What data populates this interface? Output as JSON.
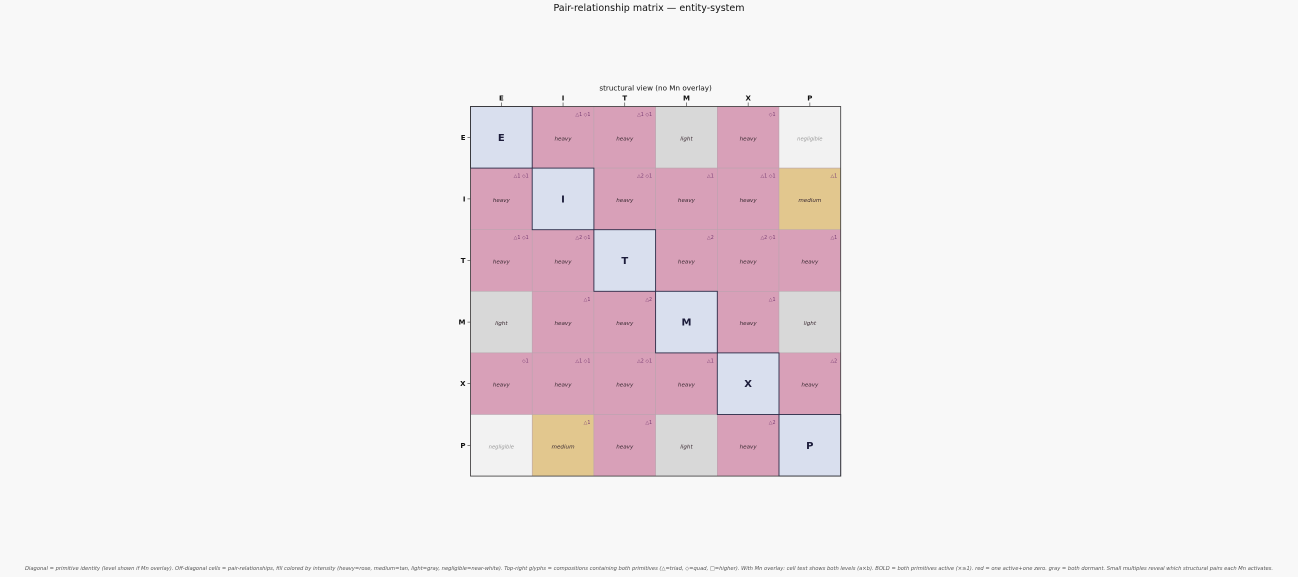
{
  "figure_title": "Pair-relationship matrix — entity-system",
  "footnote": "Diagonal = primitive identity (level shown if Mn overlay). Off-diagonal cells = pair-relationships, fill colored by intensity (heavy=rose, medium=tan, light=gray, negligible=near-white). Top-right glyphs = compositions containing both primitives (△=triad, ◇=quad, □=higher). With Mn overlay: cell text shows both levels (a×b). BOLD = both primitives active (×≥1). red = one active+one zero. gray = both dormant. Small multiples reveal which structural pairs each Mn activates.",
  "colors": {
    "heavy": "#d8a0b8",
    "medium": "#e2c78e",
    "light": "#d8d8d8",
    "negligible": "#f2f2f2",
    "diagonal": "#d9dfee",
    "grid": "#b8a3ad",
    "diagonal_border": "#2c2c48",
    "glyph": "#7a3d73"
  },
  "chart_data": {
    "type": "heatmap",
    "title": "structural view (no Mn overlay)",
    "rows": [
      "E",
      "I",
      "T",
      "M",
      "X",
      "P"
    ],
    "cols": [
      "E",
      "I",
      "T",
      "M",
      "X",
      "P"
    ],
    "cells": [
      [
        {
          "diag": "E"
        },
        {
          "level": "heavy",
          "glyph": "△1 ◇1"
        },
        {
          "level": "heavy",
          "glyph": "△1 ◇1"
        },
        {
          "level": "light",
          "glyph": ""
        },
        {
          "level": "heavy",
          "glyph": "◇1"
        },
        {
          "level": "negligible",
          "glyph": ""
        }
      ],
      [
        {
          "level": "heavy",
          "glyph": "△1 ◇1"
        },
        {
          "diag": "I"
        },
        {
          "level": "heavy",
          "glyph": "△2 ◇1"
        },
        {
          "level": "heavy",
          "glyph": "△1"
        },
        {
          "level": "heavy",
          "glyph": "△1 ◇1"
        },
        {
          "level": "medium",
          "glyph": "△1"
        }
      ],
      [
        {
          "level": "heavy",
          "glyph": "△1 ◇1"
        },
        {
          "level": "heavy",
          "glyph": "△2 ◇1"
        },
        {
          "diag": "T"
        },
        {
          "level": "heavy",
          "glyph": "△2"
        },
        {
          "level": "heavy",
          "glyph": "△2 ◇1"
        },
        {
          "level": "heavy",
          "glyph": "△1"
        }
      ],
      [
        {
          "level": "light",
          "glyph": ""
        },
        {
          "level": "heavy",
          "glyph": "△1"
        },
        {
          "level": "heavy",
          "glyph": "△2"
        },
        {
          "diag": "M"
        },
        {
          "level": "heavy",
          "glyph": "△1"
        },
        {
          "level": "light",
          "glyph": ""
        }
      ],
      [
        {
          "level": "heavy",
          "glyph": "◇1"
        },
        {
          "level": "heavy",
          "glyph": "△1 ◇1"
        },
        {
          "level": "heavy",
          "glyph": "△2 ◇1"
        },
        {
          "level": "heavy",
          "glyph": "△1"
        },
        {
          "diag": "X"
        },
        {
          "level": "heavy",
          "glyph": "△2"
        }
      ],
      [
        {
          "level": "negligible",
          "glyph": ""
        },
        {
          "level": "medium",
          "glyph": "△1"
        },
        {
          "level": "heavy",
          "glyph": "△1"
        },
        {
          "level": "light",
          "glyph": ""
        },
        {
          "level": "heavy",
          "glyph": "△2"
        },
        {
          "diag": "P"
        }
      ]
    ]
  }
}
